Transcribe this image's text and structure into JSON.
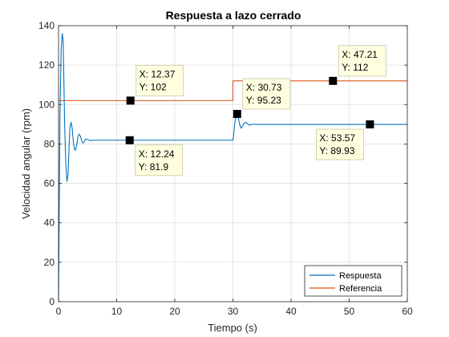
{
  "chart_data": {
    "type": "line",
    "title": "Respuesta a lazo cerrado",
    "xlabel": "Tiempo (s)",
    "ylabel": "Velocidad angular (rpm)",
    "xlim": [
      0,
      60
    ],
    "ylim": [
      0,
      140
    ],
    "xticks": [
      "0",
      "10",
      "20",
      "30",
      "40",
      "50",
      "60"
    ],
    "yticks": [
      "0",
      "20",
      "40",
      "60",
      "80",
      "100",
      "120",
      "140"
    ],
    "grid": true,
    "legend_position": "bottom-right",
    "series": [
      {
        "name": "Respuesta",
        "color": "#0072BD",
        "x": [
          0,
          0.1,
          0.25,
          0.45,
          0.65,
          0.8,
          0.9,
          1.05,
          1.25,
          1.45,
          1.65,
          1.8,
          1.95,
          2.15,
          2.35,
          2.55,
          2.75,
          2.95,
          3.15,
          3.35,
          3.55,
          3.75,
          3.95,
          4.15,
          4.4,
          4.7,
          5.0,
          5.5,
          6,
          8,
          12.24,
          20,
          30,
          30.1,
          30.3,
          30.5,
          30.73,
          30.95,
          31.15,
          31.4,
          31.65,
          31.9,
          32.2,
          32.5,
          32.8,
          33.2,
          33.6,
          34,
          35,
          40,
          53.57,
          60
        ],
        "y": [
          0,
          40,
          95,
          128,
          136,
          132,
          115,
          90,
          70,
          61,
          65,
          78,
          88,
          91,
          88,
          81,
          77,
          77,
          80,
          84,
          85,
          84,
          82,
          80.5,
          81,
          82.5,
          82.2,
          81.7,
          81.9,
          81.9,
          81.9,
          81.9,
          81.9,
          84,
          90,
          94,
          95.23,
          93,
          90,
          88,
          89,
          90.5,
          91,
          90.2,
          89.6,
          89.8,
          90.1,
          89.9,
          89.93,
          89.93,
          89.93,
          89.93
        ]
      },
      {
        "name": "Referencia",
        "color": "#D95319",
        "x": [
          0,
          12.37,
          30,
          30,
          47.21,
          60
        ],
        "y": [
          102,
          102,
          102,
          112,
          112,
          112
        ]
      }
    ],
    "datatips": [
      {
        "x": 12.37,
        "y": 102,
        "x_label": "X: 12.37",
        "y_label": "Y: 102",
        "placement": "above"
      },
      {
        "x": 12.24,
        "y": 81.9,
        "x_label": "X: 12.24",
        "y_label": "Y: 81.9",
        "placement": "below"
      },
      {
        "x": 30.73,
        "y": 95.23,
        "x_label": "X: 30.73",
        "y_label": "Y: 95.23",
        "placement": "above"
      },
      {
        "x": 47.21,
        "y": 112,
        "x_label": "X: 47.21",
        "y_label": "Y: 112",
        "placement": "above"
      },
      {
        "x": 53.57,
        "y": 89.93,
        "x_label": "X: 53.57",
        "y_label": "Y: 89.93",
        "placement": "below-left"
      }
    ]
  }
}
